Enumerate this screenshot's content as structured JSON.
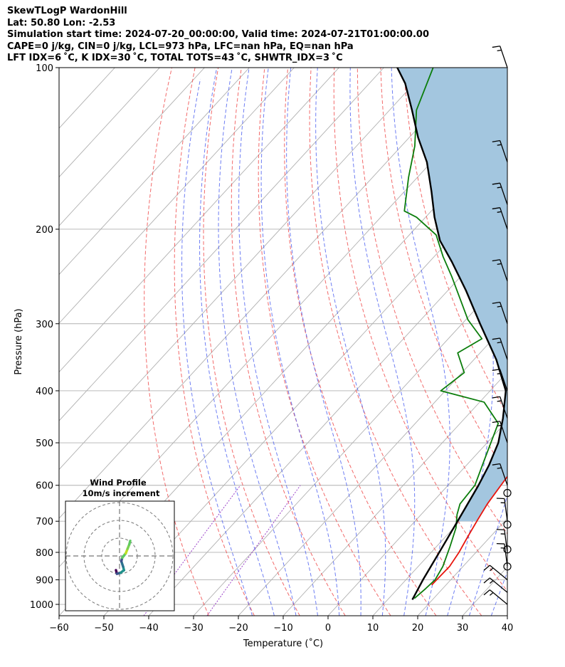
{
  "header": {
    "line1": "SkewTLogP WardonHill",
    "line2": "Lat: 50.80   Lon: -2.53",
    "line3": "Simulation start time: 2024-07-20_00:00:00, Valid time: 2024-07-21T01:00:00.00",
    "line4": "CAPE=0 j/kg, CIN=0 j/kg, LCL=973 hPa, LFC=nan hPa, EQ=nan hPa",
    "line5": "LFT IDX=6 ˚C, K IDX=30 ˚C, TOTAL TOTS=43 ˚C, SHWTR_IDX=3 ˚C"
  },
  "chart_data": {
    "type": "skewt",
    "xlabel": "Temperature (˚C)",
    "ylabel": "Pressure (hPa)",
    "xlim": [
      -60,
      40
    ],
    "ylim": [
      1050,
      100
    ],
    "log_y": true,
    "x_ticks": [
      -60,
      -50,
      -40,
      -30,
      -20,
      -10,
      0,
      10,
      20,
      30,
      40
    ],
    "x_tick_labels": [
      "−60",
      "−50",
      "−40",
      "−30",
      "−20",
      "−10",
      "0",
      "10",
      "20",
      "30",
      "40"
    ],
    "y_ticks": [
      1000,
      900,
      800,
      700,
      600,
      500,
      400,
      300,
      200,
      100
    ],
    "y_tick_labels": [
      "1000",
      "900",
      "800",
      "700",
      "600",
      "500",
      "400",
      "300",
      "200",
      "100"
    ],
    "grid": true,
    "colors": {
      "temperature": "#e8140c",
      "dewpoint": "#0b7d0b",
      "parcel": "#000000",
      "cape_fill": "#a3c6df",
      "dry_adiabat": "#f05050",
      "moist_adiabat": "#4a5ef0",
      "mixing_ratio": "#9a40c8",
      "isotherm": "#b0b0b0"
    },
    "series": [
      {
        "key": "temperature",
        "points": [
          [
            16.8,
            920
          ],
          [
            17.0,
            850
          ],
          [
            16.2,
            800
          ],
          [
            15.0,
            750
          ],
          [
            13.8,
            700
          ],
          [
            12.6,
            650
          ],
          [
            11.8,
            600
          ],
          [
            11.0,
            550
          ],
          [
            9.8,
            500
          ],
          [
            7.8,
            450
          ],
          [
            5.2,
            420
          ],
          [
            1.0,
            390
          ],
          [
            -5.5,
            340
          ],
          [
            -12.0,
            305
          ],
          [
            -16.0,
            290
          ],
          [
            -20.5,
            270
          ],
          [
            -25.0,
            250
          ],
          [
            -29.0,
            230
          ],
          [
            -33.0,
            210
          ],
          [
            -38.0,
            190
          ],
          [
            -42.0,
            170
          ],
          [
            -46.5,
            150
          ],
          [
            -51.0,
            135
          ],
          [
            -55.0,
            122
          ],
          [
            -58.0,
            115
          ],
          [
            -61.0,
            107
          ],
          [
            -63.0,
            100
          ]
        ]
      },
      {
        "key": "dewpoint",
        "points": [
          [
            15.7,
            975
          ],
          [
            16.2,
            935
          ],
          [
            16.5,
            900
          ],
          [
            15.5,
            850
          ],
          [
            13.0,
            780
          ],
          [
            10.5,
            720
          ],
          [
            8.0,
            680
          ],
          [
            6.5,
            650
          ],
          [
            6.0,
            600
          ],
          [
            3.0,
            540
          ],
          [
            -1.5,
            460
          ],
          [
            -9.0,
            420
          ],
          [
            -21.0,
            400
          ],
          [
            -19.5,
            370
          ],
          [
            -25.0,
            340
          ],
          [
            -22.5,
            320
          ],
          [
            -29.5,
            295
          ],
          [
            -42.0,
            245
          ],
          [
            -48.0,
            225
          ],
          [
            -54.0,
            205
          ],
          [
            -62.0,
            190
          ],
          [
            -66.0,
            185
          ],
          [
            -72.0,
            160
          ],
          [
            -77.0,
            140
          ],
          [
            -84.0,
            120
          ],
          [
            -89.0,
            100
          ]
        ]
      },
      {
        "key": "parcel",
        "points": [
          [
            15.5,
            980
          ],
          [
            13.8,
            900
          ],
          [
            11.8,
            800
          ],
          [
            9.5,
            700
          ],
          [
            6.8,
            600
          ],
          [
            5.0,
            550
          ],
          [
            2.5,
            500
          ],
          [
            -1.5,
            450
          ],
          [
            -6.5,
            400
          ],
          [
            -15.0,
            350
          ],
          [
            -26.0,
            300
          ],
          [
            -36.0,
            260
          ],
          [
            -45.0,
            230
          ],
          [
            -52.0,
            210
          ],
          [
            -58.0,
            190
          ],
          [
            -64.0,
            170
          ],
          [
            -71.0,
            150
          ],
          [
            -78.0,
            135
          ],
          [
            -85.0,
            120
          ],
          [
            -92.0,
            107
          ],
          [
            -97.0,
            100
          ]
        ]
      }
    ],
    "wind_barbs": {
      "pressures": [
        100,
        150,
        180,
        200,
        250,
        300,
        350,
        400,
        450,
        500,
        600,
        700,
        800,
        850,
        900,
        950,
        1000
      ],
      "calm_levels": [
        620,
        710,
        790,
        850
      ]
    },
    "hodograph": {
      "title": "Wind Profile",
      "subtitle": "10m/s increment",
      "rings": 3,
      "points": [
        [
          -2.0,
          8.0
        ],
        [
          -1.5,
          10.0
        ],
        [
          0.5,
          9.5
        ],
        [
          2.5,
          8.0
        ],
        [
          2.0,
          6.0
        ],
        [
          1.0,
          3.0
        ],
        [
          1.5,
          1.0
        ],
        [
          3.5,
          -1.5
        ],
        [
          4.5,
          -4.0
        ],
        [
          5.5,
          -6.5
        ],
        [
          6.0,
          -8.5
        ]
      ]
    }
  }
}
